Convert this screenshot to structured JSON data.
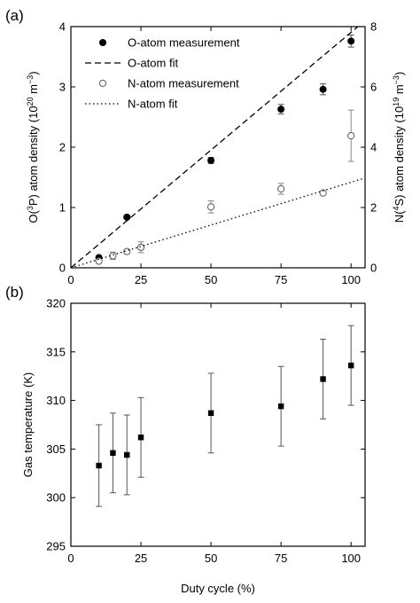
{
  "chart_data": [
    {
      "type": "scatter",
      "panel_label": "(a)",
      "xlim": [
        0,
        105
      ],
      "xticks": [
        0,
        25,
        50,
        75,
        100
      ],
      "ylim": [
        0,
        4
      ],
      "yticks": [
        0,
        1,
        2,
        3,
        4
      ],
      "ylabel": {
        "pre": "O(",
        "sup1": "3",
        "mid": "P) atom density (10",
        "sup2": "20",
        "mid2": " m",
        "sup3": "−3",
        "post": ")"
      },
      "y2lim": [
        0,
        8
      ],
      "y2ticks": [
        0,
        2,
        4,
        6,
        8
      ],
      "y2label": {
        "pre": "N(",
        "sup1": "4",
        "mid": "S) atom density (10",
        "sup2": "19",
        "mid2": " m",
        "sup3": "−3",
        "post": ")"
      },
      "legend_position": "top-left",
      "series": [
        {
          "name": "O-atom measurement",
          "axis": "left",
          "marker": "filled-circle",
          "x": [
            10,
            20,
            50,
            75,
            90,
            100
          ],
          "y": [
            0.17,
            0.84,
            1.78,
            2.63,
            2.96,
            3.76
          ],
          "err": [
            0.02,
            0.03,
            0.05,
            0.08,
            0.09,
            0.1
          ]
        },
        {
          "name": "O-atom fit",
          "axis": "left",
          "style": "dashed",
          "x": [
            0,
            105
          ],
          "y": [
            0,
            4.1
          ]
        },
        {
          "name": "N-atom measurement",
          "axis": "right",
          "marker": "open-circle",
          "x": [
            10,
            15,
            20,
            25,
            50,
            75,
            90,
            100
          ],
          "y": [
            0.22,
            0.4,
            0.54,
            0.68,
            2.02,
            2.62,
            2.48,
            4.38
          ],
          "err": [
            0.05,
            0.12,
            0.07,
            0.18,
            0.2,
            0.18,
            0.06,
            0.85
          ]
        },
        {
          "name": "N-atom fit",
          "axis": "right",
          "style": "dotted",
          "x": [
            0,
            105
          ],
          "y": [
            0,
            2.98
          ]
        }
      ]
    },
    {
      "type": "scatter",
      "panel_label": "(b)",
      "xlabel": "Duty cycle (%)",
      "ylabel": "Gas temperature (K)",
      "xlim": [
        0,
        105
      ],
      "xticks": [
        0,
        25,
        50,
        75,
        100
      ],
      "ylim": [
        295,
        320
      ],
      "yticks": [
        295,
        300,
        305,
        310,
        315,
        320
      ],
      "series": [
        {
          "marker": "filled-square",
          "x": [
            10,
            15,
            20,
            25,
            50,
            75,
            90,
            100
          ],
          "y": [
            303.3,
            304.6,
            304.4,
            306.2,
            308.7,
            309.4,
            312.2,
            313.6
          ],
          "err": [
            4.2,
            4.1,
            4.1,
            4.1,
            4.1,
            4.1,
            4.1,
            4.1
          ]
        }
      ]
    }
  ]
}
